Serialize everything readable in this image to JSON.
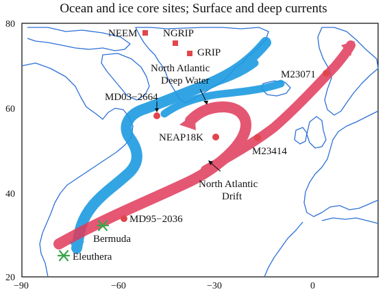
{
  "title": "Ocean and ice core sites; Surface and deep currents",
  "axes": {
    "x_ticks": [
      "−90",
      "−60",
      "−30",
      "0"
    ],
    "y_ticks": [
      "80",
      "60",
      "40",
      "20"
    ],
    "lon_range": [
      -90,
      20
    ],
    "lat_range": [
      20,
      80
    ]
  },
  "colors": {
    "coast": "#2b6fd6",
    "surface_current": "#e03a5a",
    "deep_current": "#1e9be0",
    "ice_core": "#e0464b",
    "ocean_core": "#e0464b",
    "island": "#3aa648"
  },
  "ice_cores": [
    {
      "name": "NEEM"
    },
    {
      "name": "NGRIP"
    },
    {
      "name": "GRIP"
    }
  ],
  "ocean_cores": [
    {
      "name": "MD03−2664"
    },
    {
      "name": "NEAP18K"
    },
    {
      "name": "M23071"
    },
    {
      "name": "M23414"
    },
    {
      "name": "MD95−2036"
    }
  ],
  "islands": [
    {
      "name": "Bermuda"
    },
    {
      "name": "Eleuthera"
    }
  ],
  "currents": {
    "deep": [
      "North Atlantic",
      "Deep Water"
    ],
    "surface": [
      "North Atlantic",
      "Drift"
    ]
  }
}
